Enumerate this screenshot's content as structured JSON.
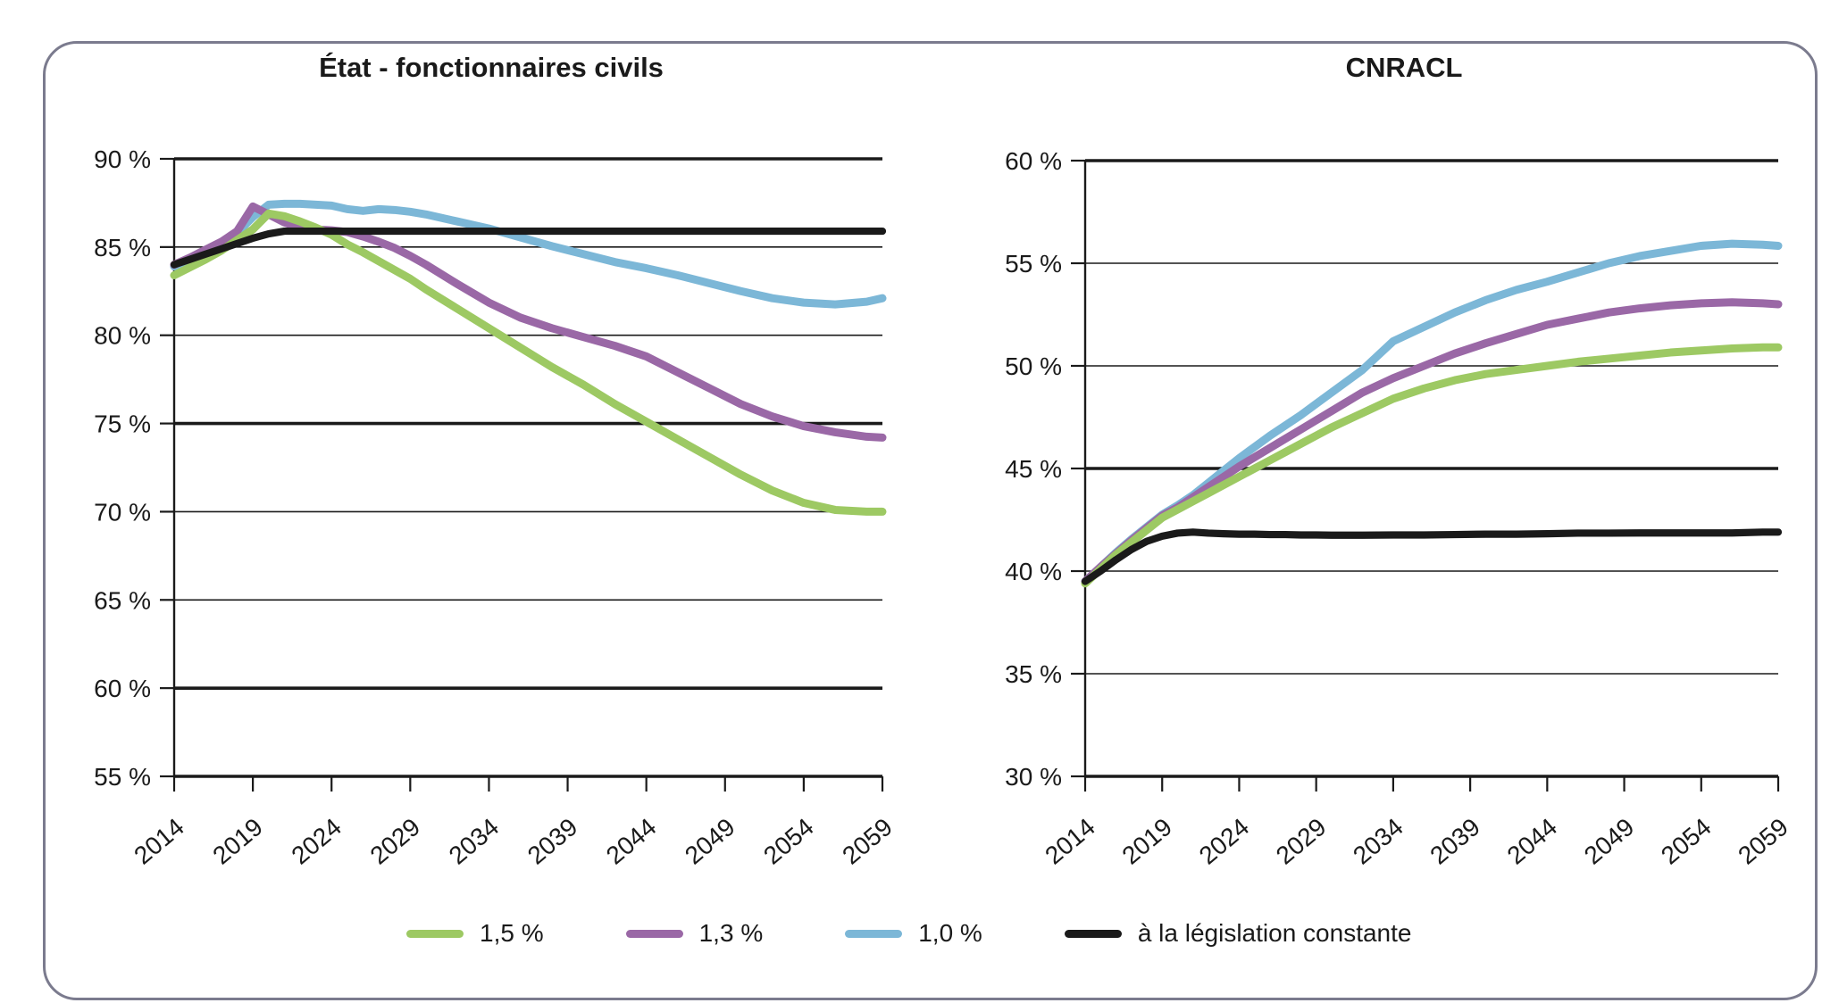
{
  "titles": {
    "left": "État - fonctionnaires civils",
    "right": "CNRACL"
  },
  "colors": {
    "green": "#9dc963",
    "purple": "#9a68a6",
    "blue": "#7cb7d7",
    "black": "#1a1a1a",
    "frame": "#7b7b8e",
    "grid": "#1a1a1a",
    "text": "#1a1a1a"
  },
  "legend": {
    "items": [
      {
        "label": "1,5 %",
        "color": "#9dc963"
      },
      {
        "label": "1,3 %",
        "color": "#9a68a6"
      },
      {
        "label": "1,0 %",
        "color": "#7cb7d7"
      },
      {
        "label": "à la législation constante",
        "color": "#1a1a1a"
      }
    ]
  },
  "chart_data": [
    {
      "type": "line",
      "title": "État - fonctionnaires civils",
      "xlabel": "",
      "ylabel": "",
      "xlim": [
        2014,
        2059
      ],
      "ylim": [
        55,
        90
      ],
      "grid": true,
      "legend_position": "bottom",
      "x_ticks": [
        2014,
        2019,
        2024,
        2029,
        2034,
        2039,
        2044,
        2049,
        2054,
        2059
      ],
      "x_tick_labels": [
        "2014",
        "2019",
        "2024",
        "2029",
        "2034",
        "2039",
        "2044",
        "2049",
        "2054",
        "2059"
      ],
      "y_ticks": [
        90,
        85,
        80,
        75,
        70,
        65,
        60,
        55
      ],
      "y_tick_labels": [
        "90 %",
        "85 %",
        "80 %",
        "75 %",
        "70 %",
        "65 %",
        "60 %",
        "55 %"
      ],
      "thick_grid_values": [
        90,
        75,
        60,
        55
      ],
      "x": [
        2014,
        2015,
        2016,
        2017,
        2018,
        2019,
        2020,
        2021,
        2022,
        2023,
        2024,
        2025,
        2026,
        2027,
        2028,
        2029,
        2030,
        2032,
        2034,
        2036,
        2038,
        2040,
        2042,
        2044,
        2046,
        2048,
        2050,
        2052,
        2054,
        2056,
        2058,
        2059
      ],
      "series": [
        {
          "name": "1,0 %",
          "color": "#7cb7d7",
          "values": [
            83.9,
            84.3,
            84.75,
            85.2,
            85.8,
            86.7,
            87.4,
            87.45,
            87.45,
            87.4,
            87.35,
            87.15,
            87.05,
            87.15,
            87.1,
            87.0,
            86.85,
            86.45,
            86.05,
            85.55,
            85.05,
            84.6,
            84.15,
            83.8,
            83.4,
            82.95,
            82.5,
            82.1,
            81.85,
            81.75,
            81.9,
            82.1
          ]
        },
        {
          "name": "1,3 %",
          "color": "#9a68a6",
          "values": [
            84.0,
            84.4,
            84.85,
            85.3,
            85.9,
            87.3,
            86.85,
            86.4,
            86.1,
            86.0,
            85.95,
            85.85,
            85.6,
            85.3,
            84.95,
            84.5,
            84.0,
            82.9,
            81.85,
            81.0,
            80.4,
            79.9,
            79.4,
            78.8,
            77.9,
            77.0,
            76.1,
            75.4,
            74.85,
            74.5,
            74.25,
            74.2
          ]
        },
        {
          "name": "1,5 %",
          "color": "#9dc963",
          "values": [
            83.4,
            83.85,
            84.3,
            84.8,
            85.4,
            86.0,
            86.9,
            86.75,
            86.45,
            86.1,
            85.7,
            85.15,
            84.7,
            84.2,
            83.7,
            83.2,
            82.6,
            81.5,
            80.4,
            79.3,
            78.2,
            77.2,
            76.1,
            75.1,
            74.1,
            73.1,
            72.1,
            71.2,
            70.5,
            70.1,
            70.0,
            70.0
          ]
        },
        {
          "name": "à la législation constante",
          "color": "#1a1a1a",
          "values": [
            84.0,
            84.3,
            84.6,
            84.9,
            85.2,
            85.5,
            85.75,
            85.9,
            85.9,
            85.9,
            85.9,
            85.9,
            85.9,
            85.9,
            85.9,
            85.9,
            85.9,
            85.9,
            85.9,
            85.9,
            85.9,
            85.9,
            85.9,
            85.9,
            85.9,
            85.9,
            85.9,
            85.9,
            85.9,
            85.9,
            85.9,
            85.9
          ]
        }
      ]
    },
    {
      "type": "line",
      "title": "CNRACL",
      "xlabel": "",
      "ylabel": "",
      "xlim": [
        2014,
        2059
      ],
      "ylim": [
        30,
        60
      ],
      "grid": true,
      "legend_position": "bottom",
      "x_ticks": [
        2014,
        2019,
        2024,
        2029,
        2034,
        2039,
        2044,
        2049,
        2054,
        2059
      ],
      "x_tick_labels": [
        "2014",
        "2019",
        "2024",
        "2029",
        "2034",
        "2039",
        "2044",
        "2049",
        "2054",
        "2059"
      ],
      "y_ticks": [
        60,
        55,
        50,
        45,
        40,
        35,
        30
      ],
      "y_tick_labels": [
        "60 %",
        "55 %",
        "50 %",
        "45 %",
        "40 %",
        "35 %",
        "30 %"
      ],
      "thick_grid_values": [
        60,
        45,
        30
      ],
      "x": [
        2014,
        2015,
        2016,
        2017,
        2018,
        2019,
        2020,
        2021,
        2022,
        2023,
        2024,
        2025,
        2026,
        2027,
        2028,
        2029,
        2030,
        2032,
        2034,
        2036,
        2038,
        2040,
        2042,
        2044,
        2046,
        2048,
        2050,
        2052,
        2054,
        2056,
        2058,
        2059
      ],
      "series": [
        {
          "name": "1,0 %",
          "color": "#7cb7d7",
          "values": [
            39.5,
            40.2,
            40.9,
            41.55,
            42.15,
            42.75,
            43.2,
            43.7,
            44.3,
            44.9,
            45.5,
            46.05,
            46.6,
            47.1,
            47.6,
            48.15,
            48.7,
            49.8,
            51.2,
            51.9,
            52.6,
            53.2,
            53.7,
            54.1,
            54.55,
            55.0,
            55.35,
            55.6,
            55.85,
            55.95,
            55.9,
            55.85
          ]
        },
        {
          "name": "1,3 %",
          "color": "#9a68a6",
          "values": [
            39.5,
            40.2,
            40.85,
            41.5,
            42.1,
            42.7,
            43.1,
            43.6,
            44.1,
            44.6,
            45.1,
            45.55,
            46.0,
            46.45,
            46.9,
            47.35,
            47.8,
            48.7,
            49.4,
            50.0,
            50.6,
            51.1,
            51.55,
            52.0,
            52.3,
            52.6,
            52.8,
            52.95,
            53.05,
            53.1,
            53.05,
            53.0
          ]
        },
        {
          "name": "1,5 %",
          "color": "#9dc963",
          "values": [
            39.4,
            40.1,
            40.8,
            41.4,
            42.0,
            42.6,
            43.0,
            43.4,
            43.8,
            44.2,
            44.6,
            45.0,
            45.4,
            45.8,
            46.2,
            46.6,
            47.0,
            47.7,
            48.4,
            48.9,
            49.3,
            49.6,
            49.8,
            50.0,
            50.2,
            50.35,
            50.5,
            50.65,
            50.75,
            50.85,
            50.9,
            50.9
          ]
        },
        {
          "name": "à la législation constante",
          "color": "#1a1a1a",
          "values": [
            39.5,
            40.0,
            40.55,
            41.05,
            41.45,
            41.7,
            41.85,
            41.9,
            41.85,
            41.82,
            41.8,
            41.8,
            41.78,
            41.78,
            41.76,
            41.76,
            41.75,
            41.75,
            41.76,
            41.76,
            41.78,
            41.8,
            41.8,
            41.82,
            41.85,
            41.85,
            41.86,
            41.86,
            41.86,
            41.86,
            41.9,
            41.9
          ]
        }
      ]
    }
  ]
}
